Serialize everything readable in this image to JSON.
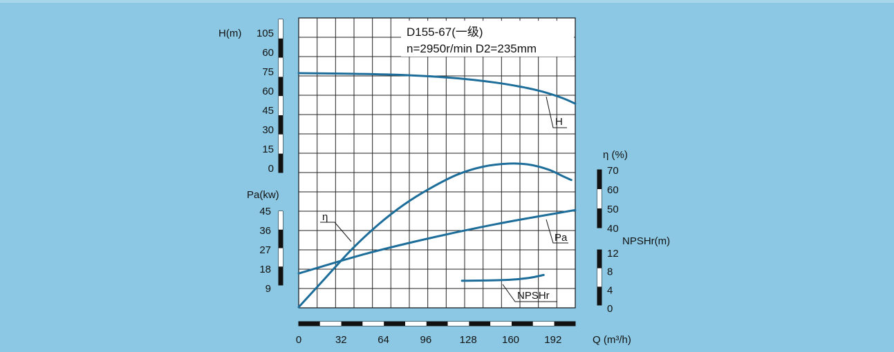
{
  "chart_data": {
    "type": "line",
    "title": "D155-67(一级)",
    "subtitle": "n=2950r/min  D2=235mm",
    "xlabel": "Q (m³/h)",
    "xlim": [
      0,
      210
    ],
    "x_ticks": [
      "0",
      "32",
      "64",
      "96",
      "128",
      "160",
      "192"
    ],
    "axes": {
      "H": {
        "label": "H(m)",
        "ticks": [
          "105",
          "60",
          "75",
          "60",
          "45",
          "30",
          "15",
          "0"
        ]
      },
      "Pa": {
        "label": "Pa(kw)",
        "ticks": [
          "45",
          "36",
          "27",
          "18",
          "9"
        ]
      },
      "eta": {
        "label": "η (%)",
        "ticks": [
          "70",
          "60",
          "50",
          "40"
        ]
      },
      "NPSHr": {
        "label": "NPSHr(m)",
        "ticks": [
          "12",
          "8",
          "4",
          "0"
        ]
      }
    },
    "grid": true,
    "series": [
      {
        "name": "H",
        "axis": "H",
        "x": [
          0,
          40,
          80,
          120,
          150,
          170,
          185,
          200,
          210
        ],
        "y": [
          75,
          74.5,
          73.5,
          71,
          67.5,
          64,
          60.5,
          55.5,
          51
        ]
      },
      {
        "name": "η",
        "axis": "eta",
        "x": [
          0,
          20,
          40,
          60,
          80,
          100,
          120,
          140,
          160,
          175,
          190,
          200,
          207
        ],
        "y": [
          0,
          14,
          28,
          40,
          50,
          58,
          64.5,
          68.5,
          70,
          69.5,
          67,
          64,
          62
        ]
      },
      {
        "name": "Pa",
        "axis": "Pa",
        "x": [
          0,
          50,
          100,
          150,
          200,
          210
        ],
        "y": [
          16,
          25,
          32.5,
          39,
          44.5,
          45.5
        ]
      },
      {
        "name": "NPSHr",
        "axis": "NPSHr",
        "x": [
          124,
          140,
          160,
          175,
          186
        ],
        "y": [
          5.6,
          5.65,
          5.8,
          6.2,
          6.8
        ]
      }
    ]
  }
}
